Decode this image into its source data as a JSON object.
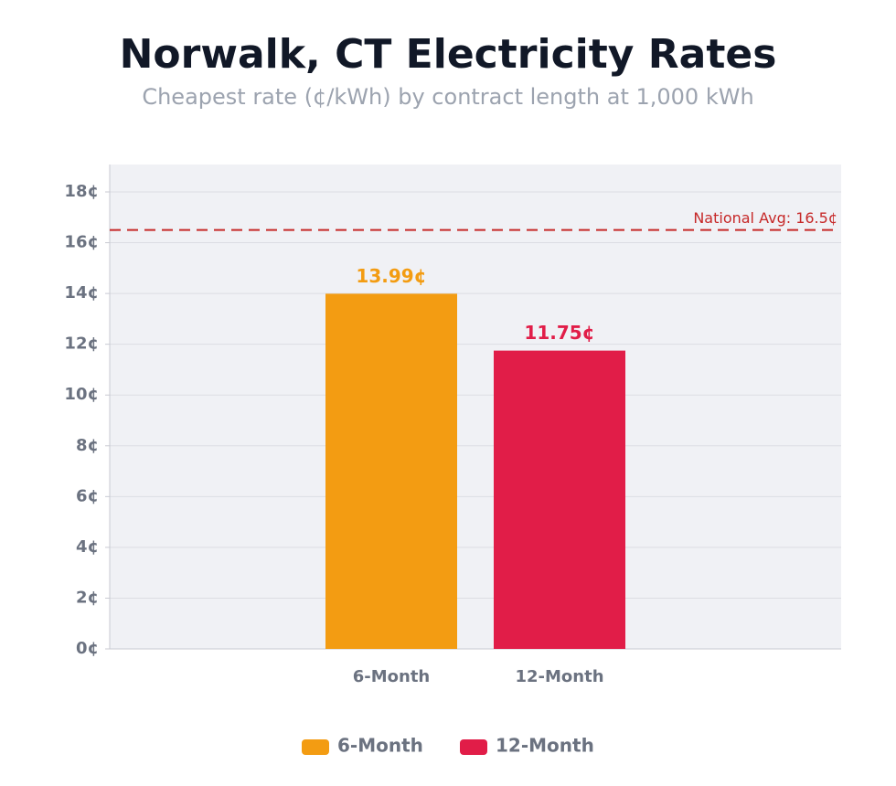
{
  "chart_data": {
    "type": "bar",
    "title": "Norwalk, CT Electricity Rates",
    "subtitle": "Cheapest rate (¢/kWh) by contract length at 1,000 kWh",
    "categories": [
      "6-Month",
      "12-Month"
    ],
    "values": [
      13.99,
      11.75
    ],
    "value_labels": [
      "13.99¢",
      "11.75¢"
    ],
    "colors": [
      "#f39c12",
      "#e11d48"
    ],
    "ylim": [
      0,
      19.08
    ],
    "yticks": [
      {
        "value": 0,
        "label": "0¢"
      },
      {
        "value": 2,
        "label": "2¢"
      },
      {
        "value": 4,
        "label": "4¢"
      },
      {
        "value": 6,
        "label": "6¢"
      },
      {
        "value": 8,
        "label": "8¢"
      },
      {
        "value": 10,
        "label": "10¢"
      },
      {
        "value": 12,
        "label": "12¢"
      },
      {
        "value": 14,
        "label": "14¢"
      },
      {
        "value": 16,
        "label": "16¢"
      },
      {
        "value": 18,
        "label": "18¢"
      }
    ],
    "grid": true,
    "legend": "bottom",
    "reference_line": {
      "value": 16.5,
      "label": "National Avg: 16.5¢",
      "color": "#c62828"
    }
  }
}
